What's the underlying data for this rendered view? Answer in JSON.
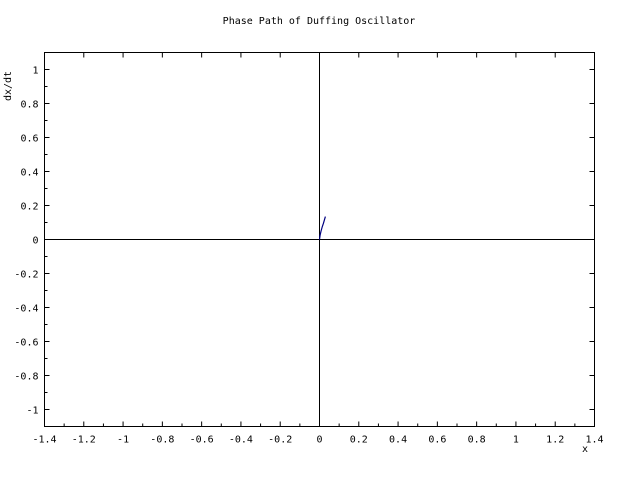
{
  "chart_data": {
    "type": "line",
    "title": "Phase Path of Duffing Oscillator",
    "xlabel": "x",
    "ylabel": "dx/dt",
    "xlim": [
      -1.4,
      1.4
    ],
    "ylim": [
      -1.1,
      1.1
    ],
    "grid": false,
    "x_ticks": [
      -1.4,
      -1.2,
      -1.0,
      -0.8,
      -0.6,
      -0.4,
      -0.2,
      0.0,
      0.2,
      0.4,
      0.6,
      0.8,
      1.0,
      1.2,
      1.4
    ],
    "x_tick_labels": [
      "-1.4",
      "-1.2",
      "-1",
      "-0.8",
      "-0.6",
      "-0.4",
      "-0.2",
      "0",
      "0.2",
      "0.4",
      "0.6",
      "0.8",
      "1",
      "1.2",
      "1.4"
    ],
    "y_ticks": [
      -1.0,
      -0.8,
      -0.6,
      -0.4,
      -0.2,
      0.0,
      0.2,
      0.4,
      0.6,
      0.8,
      1.0
    ],
    "y_tick_labels": [
      "-1",
      "-0.8",
      "-0.6",
      "-0.4",
      "-0.2",
      "0",
      "0.2",
      "0.4",
      "0.6",
      "0.8",
      "1"
    ],
    "series": [
      {
        "color": "#000080",
        "x": [
          0.0,
          0.003,
          0.008,
          0.014,
          0.02,
          0.025,
          0.03
        ],
        "y": [
          0.0,
          0.025,
          0.05,
          0.075,
          0.095,
          0.115,
          0.135
        ]
      }
    ]
  }
}
